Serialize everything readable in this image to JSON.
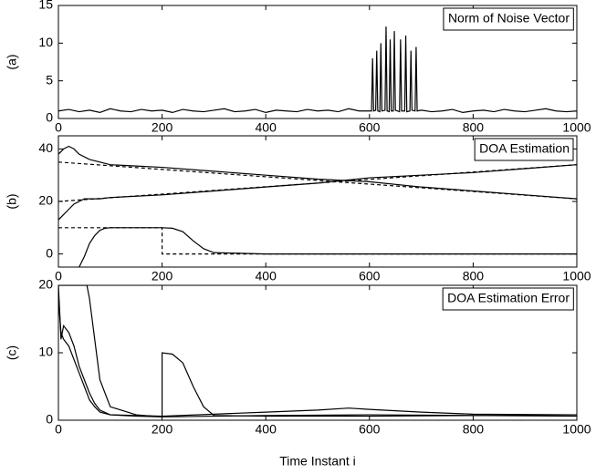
{
  "chart_data": [
    {
      "type": "line",
      "ylabel": "(a)",
      "title": "Norm of Noise Vector",
      "xlim": [
        0,
        1000
      ],
      "xticks": [
        0,
        200,
        400,
        600,
        800,
        1000
      ],
      "ylim": [
        0,
        15
      ],
      "yticks": [
        0,
        5,
        10,
        15
      ],
      "series": [
        {
          "color": "#000000",
          "style": "solid",
          "x": [
            0,
            20,
            40,
            60,
            80,
            100,
            120,
            140,
            160,
            180,
            200,
            220,
            240,
            260,
            280,
            300,
            320,
            340,
            360,
            380,
            400,
            420,
            440,
            460,
            480,
            500,
            520,
            540,
            560,
            580,
            600,
            604,
            606,
            608,
            612,
            614,
            616,
            620,
            622,
            624,
            630,
            632,
            634,
            638,
            640,
            642,
            646,
            648,
            650,
            658,
            660,
            662,
            668,
            670,
            672,
            678,
            680,
            682,
            688,
            690,
            692,
            700,
            720,
            740,
            760,
            780,
            800,
            820,
            840,
            860,
            880,
            900,
            920,
            940,
            960,
            980,
            1000
          ],
          "values": [
            1.0,
            1.2,
            0.9,
            1.1,
            0.8,
            1.3,
            1.0,
            0.9,
            1.2,
            1.0,
            1.1,
            0.8,
            1.2,
            1.0,
            0.9,
            1.1,
            1.3,
            0.9,
            1.0,
            1.2,
            0.8,
            1.1,
            1.0,
            0.9,
            1.2,
            1.0,
            1.1,
            0.9,
            1.3,
            1.0,
            1.0,
            1.0,
            8.0,
            1.0,
            1.1,
            9.0,
            1.0,
            0.9,
            10.0,
            1.0,
            1.1,
            12.2,
            1.0,
            0.9,
            10.5,
            1.0,
            1.0,
            11.6,
            1.1,
            0.9,
            10.5,
            1.0,
            1.0,
            11.0,
            0.9,
            1.0,
            9.0,
            1.1,
            1.0,
            9.5,
            1.0,
            1.1,
            0.9,
            1.0,
            1.2,
            0.8,
            1.0,
            1.1,
            0.9,
            1.2,
            1.0,
            0.9,
            1.1,
            1.3,
            1.0,
            0.9,
            1.0
          ]
        }
      ]
    },
    {
      "type": "line",
      "ylabel": "(b)",
      "title": "DOA Estimation",
      "xlim": [
        0,
        1000
      ],
      "xticks": [
        0,
        200,
        400,
        600,
        800,
        1000
      ],
      "ylim": [
        -5,
        45
      ],
      "yticks": [
        0,
        20,
        40
      ],
      "series": [
        {
          "color": "#000000",
          "style": "solid",
          "x": [
            0,
            10,
            20,
            30,
            40,
            60,
            80,
            100,
            150,
            200,
            300,
            400,
            500,
            600,
            700,
            800,
            900,
            1000
          ],
          "values": [
            38,
            40,
            41,
            40,
            38,
            36,
            35,
            34,
            33.5,
            33,
            31.5,
            30,
            28.5,
            27.5,
            25.5,
            24,
            22.5,
            21
          ]
        },
        {
          "color": "#000000",
          "style": "dashed",
          "x": [
            0,
            1000
          ],
          "values": [
            35,
            21
          ]
        },
        {
          "color": "#000000",
          "style": "solid",
          "x": [
            0,
            10,
            20,
            30,
            50,
            80,
            100,
            200,
            300,
            400,
            500,
            600,
            700,
            800,
            900,
            1000
          ],
          "values": [
            13,
            15,
            17,
            19,
            21,
            21,
            21.5,
            22.5,
            24,
            25.5,
            27,
            29,
            30,
            31,
            32.5,
            34
          ]
        },
        {
          "color": "#000000",
          "style": "dashed",
          "x": [
            0,
            1000
          ],
          "values": [
            20,
            34
          ]
        },
        {
          "color": "#000000",
          "style": "solid",
          "x": [
            40,
            50,
            60,
            70,
            80,
            90,
            100,
            150,
            200,
            220,
            240,
            260,
            280,
            300,
            400,
            600,
            800,
            1000
          ],
          "values": [
            -5,
            -1,
            4,
            7,
            9,
            9.8,
            10,
            10,
            10,
            9.8,
            8.5,
            5,
            2,
            0.5,
            0,
            0,
            0,
            0
          ]
        },
        {
          "color": "#000000",
          "style": "dashed",
          "x": [
            0,
            200,
            200,
            1000
          ],
          "values": [
            10,
            10,
            0,
            0
          ]
        }
      ]
    },
    {
      "type": "line",
      "ylabel": "(c)",
      "title": "DOA Estimation Error",
      "xlabel": "Time Instant i",
      "xlim": [
        0,
        1000
      ],
      "xticks": [
        0,
        200,
        400,
        600,
        800,
        1000
      ],
      "ylim": [
        0,
        20
      ],
      "yticks": [
        0,
        10,
        20
      ],
      "series": [
        {
          "color": "#000000",
          "style": "solid",
          "x": [
            0,
            5,
            10,
            20,
            30,
            40,
            50,
            60,
            70,
            80,
            100,
            150,
            200,
            300,
            400,
            500,
            560,
            600,
            700,
            800,
            1000
          ],
          "values": [
            20,
            12,
            14,
            13,
            11,
            8,
            6,
            4,
            2.5,
            1.5,
            0.8,
            0.7,
            0.6,
            0.9,
            1.2,
            1.5,
            1.8,
            1.6,
            1.2,
            0.9,
            0.8
          ]
        },
        {
          "color": "#000000",
          "style": "solid",
          "x": [
            0,
            5,
            10,
            20,
            30,
            40,
            50,
            60,
            70,
            80,
            100,
            150,
            200,
            400,
            600,
            800,
            1000
          ],
          "values": [
            18,
            13,
            12,
            11,
            9,
            7,
            5,
            3,
            2,
            1.2,
            0.8,
            0.6,
            0.5,
            0.7,
            0.8,
            0.7,
            0.6
          ]
        },
        {
          "color": "#000000",
          "style": "solid",
          "x": [
            0,
            20,
            40,
            50,
            55,
            60,
            70,
            80,
            100,
            150,
            200,
            200,
            220,
            240,
            260,
            280,
            300,
            400,
            600,
            800,
            1000
          ],
          "values": [
            20,
            20,
            20,
            20,
            20,
            18,
            12,
            6,
            2,
            0.8,
            0.5,
            10,
            9.8,
            8.5,
            5,
            2,
            0.7,
            0.6,
            0.6,
            0.7,
            0.8
          ]
        }
      ]
    }
  ]
}
